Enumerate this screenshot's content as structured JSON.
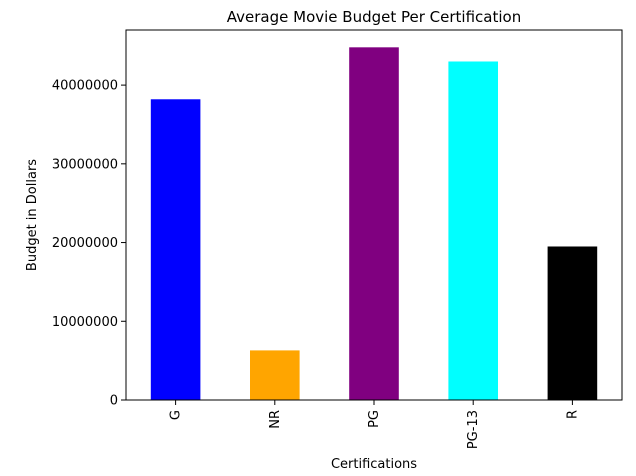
{
  "chart_data": {
    "type": "bar",
    "title": "Average Movie Budget Per Certification",
    "xlabel": "Certifications",
    "ylabel": "Budget in Dollars",
    "categories": [
      "G",
      "NR",
      "PG",
      "PG-13",
      "R"
    ],
    "values": [
      38200000,
      6300000,
      44800000,
      43000000,
      19500000
    ],
    "colors": [
      "#0000ff",
      "#ffa500",
      "#800080",
      "#00ffff",
      "#000000"
    ],
    "ylim": [
      0,
      47000000
    ],
    "yticks": [
      0,
      10000000,
      20000000,
      30000000,
      40000000
    ],
    "ytick_labels": [
      "0",
      "10000000",
      "20000000",
      "30000000",
      "40000000"
    ],
    "grid": false,
    "legend": "none"
  }
}
